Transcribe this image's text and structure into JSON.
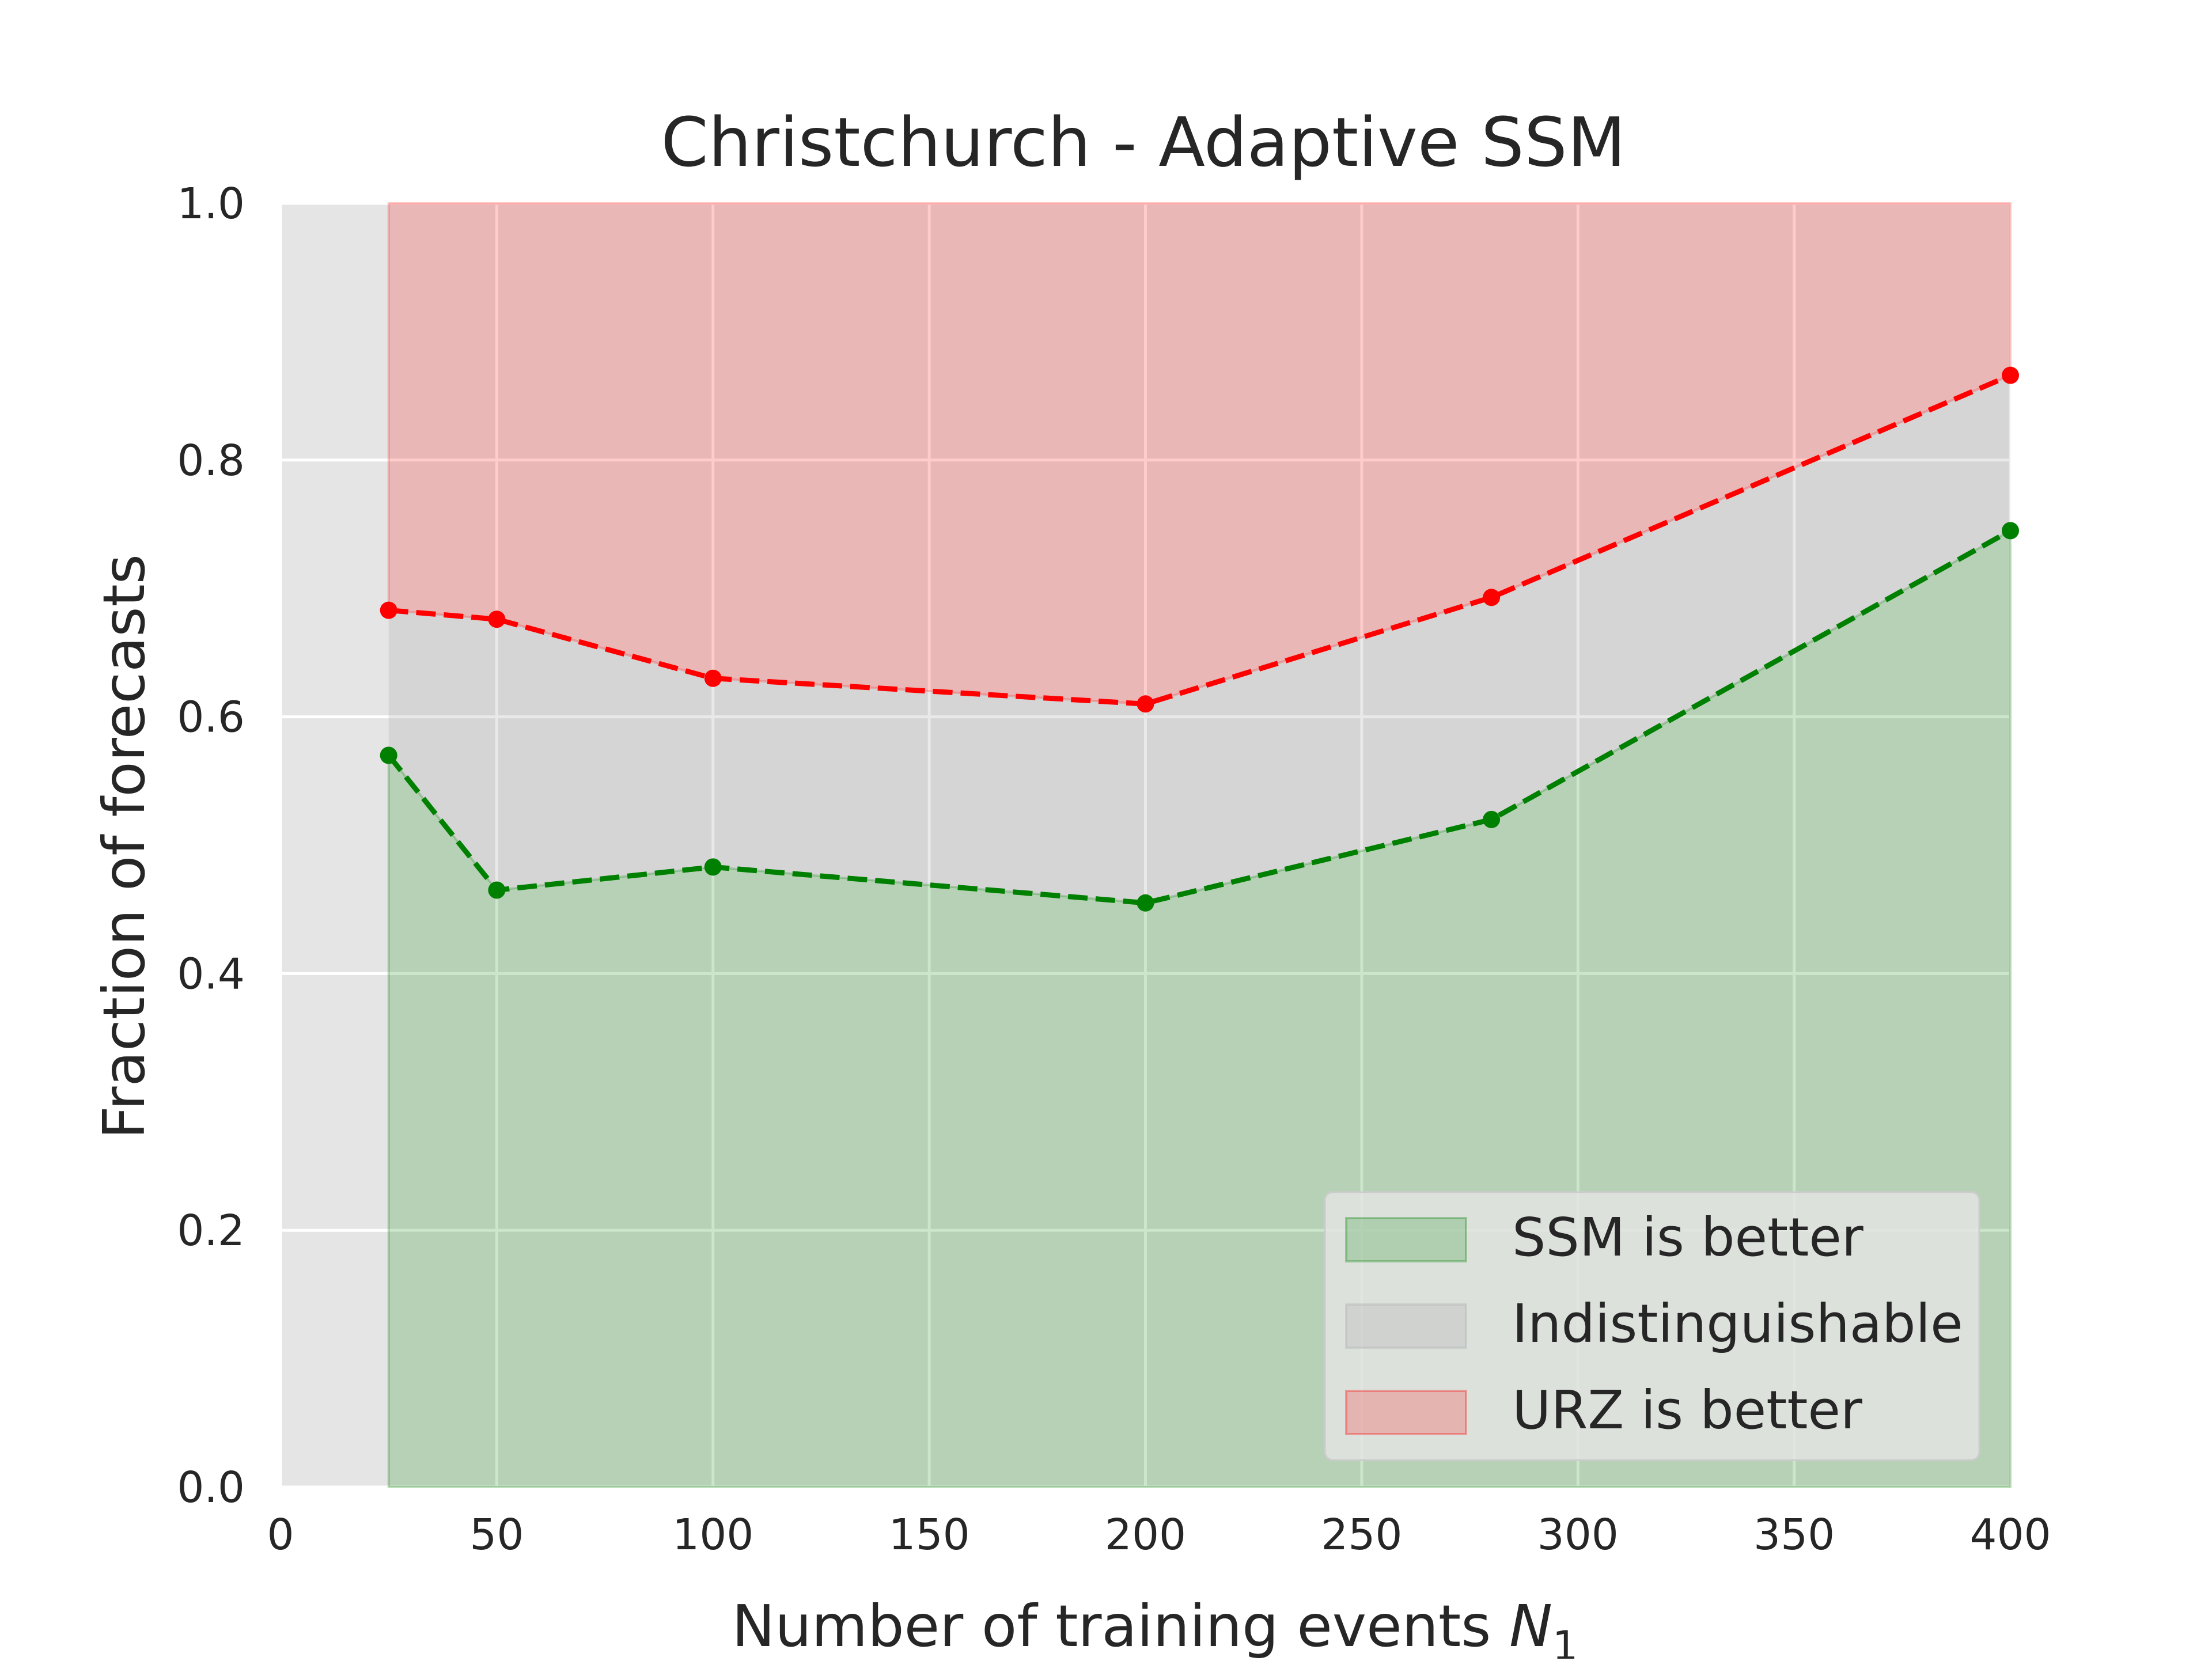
{
  "chart_data": {
    "type": "area",
    "title": "Christchurch - Adaptive SSM",
    "xlabel": "Number of training events",
    "xlabel_symbol": "N",
    "xlabel_subscript": "1",
    "ylabel": "Fraction of forecasts",
    "xlim": [
      0,
      400
    ],
    "ylim": [
      0.0,
      1.0
    ],
    "xticks": [
      0,
      50,
      100,
      150,
      200,
      250,
      300,
      350,
      400
    ],
    "xtick_labels": [
      "0",
      "50",
      "100",
      "150",
      "200",
      "250",
      "300",
      "350",
      "400"
    ],
    "yticks": [
      0.0,
      0.2,
      0.4,
      0.6,
      0.8,
      1.0
    ],
    "ytick_labels": [
      "0.0",
      "0.2",
      "0.4",
      "0.6",
      "0.8",
      "1.0"
    ],
    "grid": true,
    "legend_position": "lower-right",
    "x": [
      25,
      50,
      100,
      200,
      280,
      400
    ],
    "series": [
      {
        "name": "SSM is better",
        "values": [
          0.57,
          0.465,
          0.483,
          0.455,
          0.52,
          0.745
        ],
        "color": "#008000"
      },
      {
        "name": "URZ is better",
        "values": [
          0.683,
          0.676,
          0.63,
          0.61,
          0.693,
          0.866
        ],
        "color": "#ff0000"
      }
    ],
    "legend": [
      {
        "label": "SSM is better",
        "color": "#008000"
      },
      {
        "label": "Indistinguishable",
        "color": "#a9a9a9"
      },
      {
        "label": "URZ is better",
        "color": "#ff0000"
      }
    ],
    "colors": {
      "axes_background": "#e5e5e5",
      "grid": "#ffffff",
      "green_fill": "#b9d3b9",
      "gray_fill": "#d2d2d2",
      "red_fill": "#eab7b7",
      "green_line": "#008000",
      "red_line": "#ff0000"
    }
  }
}
